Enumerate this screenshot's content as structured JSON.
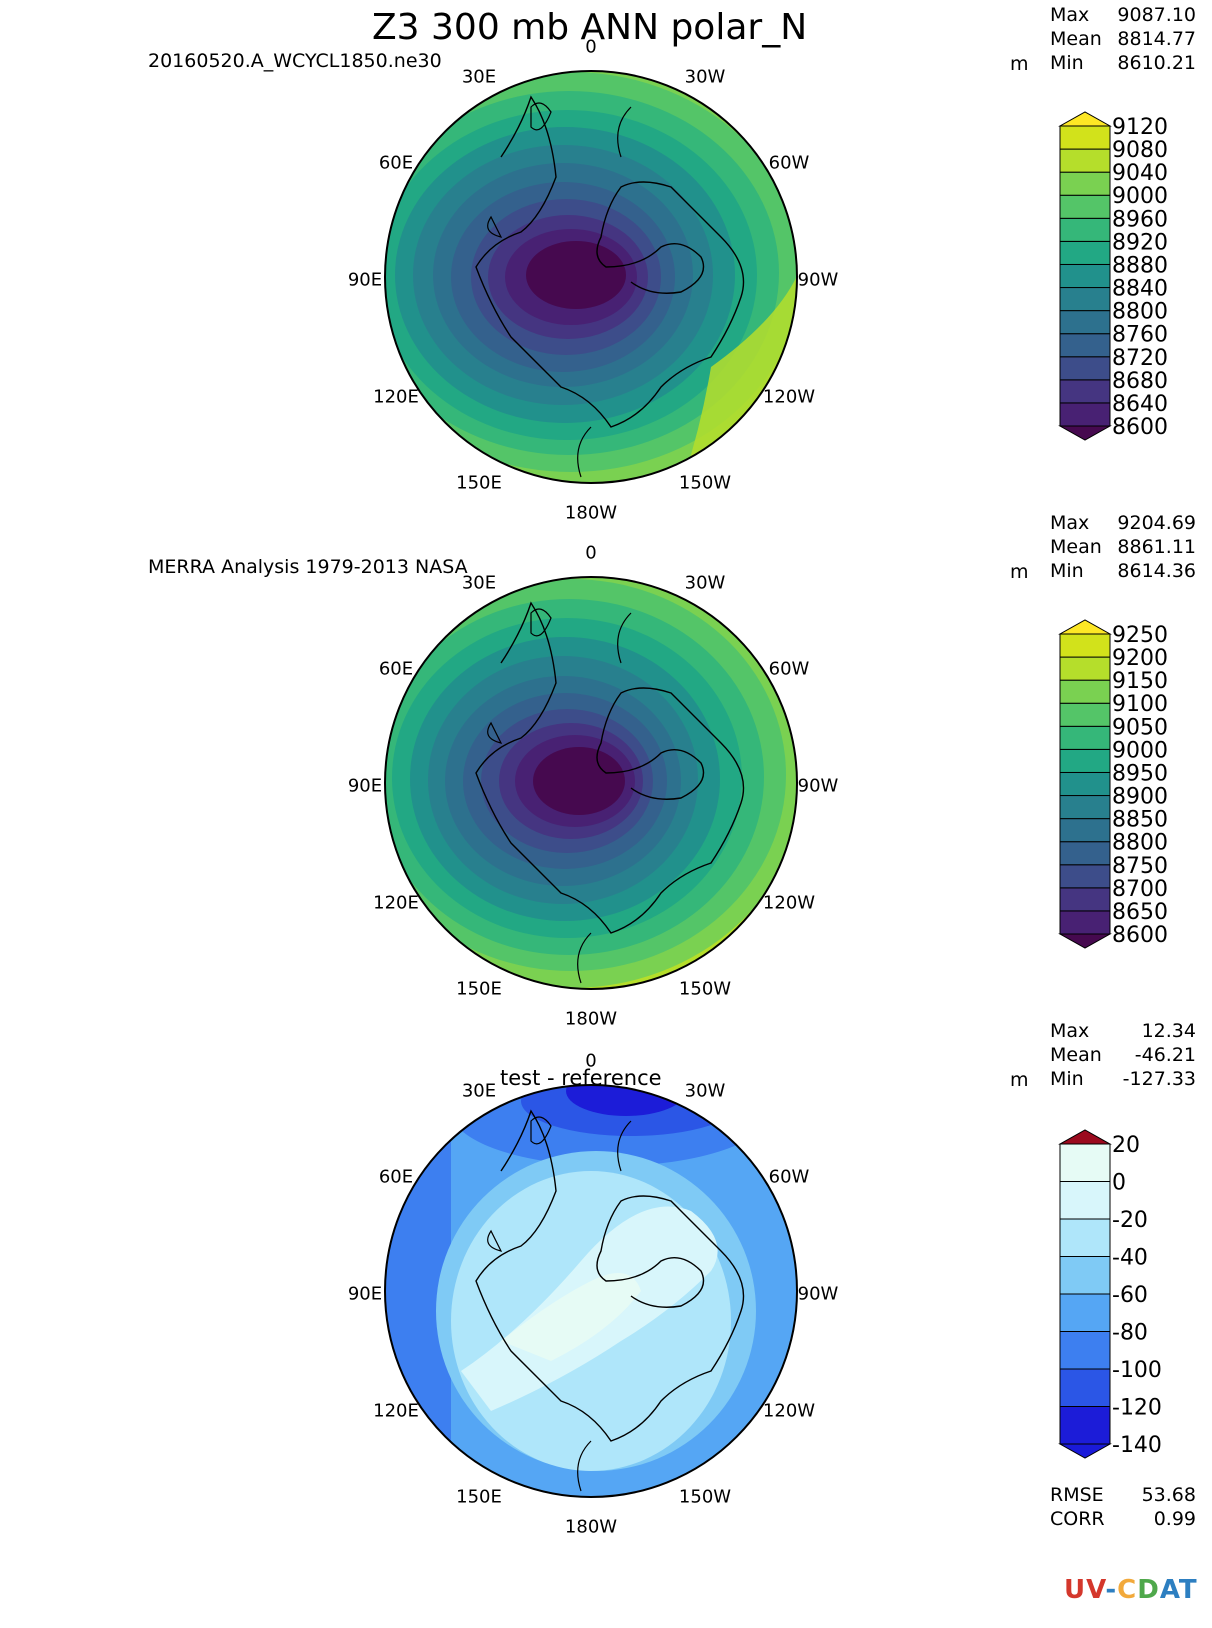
{
  "title": "Z3 300 mb ANN polar_N",
  "panels": [
    {
      "id": "test",
      "subtitle": "20160520.A_WCYCL1850.ne30",
      "unit": "m",
      "stats": {
        "max_label": "Max",
        "max": "9087.10",
        "mean_label": "Mean",
        "mean": "8814.77",
        "min_label": "Min",
        "min": "8610.21"
      },
      "colorbar": {
        "levels": [
          "8600",
          "8640",
          "8680",
          "8720",
          "8760",
          "8800",
          "8840",
          "8880",
          "8920",
          "8960",
          "9000",
          "9040",
          "9080",
          "9120"
        ],
        "colors": [
          "#46094f",
          "#482173",
          "#453581",
          "#3d4d8a",
          "#34618d",
          "#2d718e",
          "#28808e",
          "#21918c",
          "#22a884",
          "#35b779",
          "#54c568",
          "#7ad151",
          "#b5de2b",
          "#d2e21b",
          "#fde725"
        ]
      },
      "lon_labels": [
        "0",
        "30W",
        "60W",
        "90W",
        "120W",
        "150W",
        "180W",
        "150E",
        "120E",
        "90E",
        "60E",
        "30E"
      ]
    },
    {
      "id": "reference",
      "subtitle": "MERRA Analysis 1979-2013 NASA",
      "unit": "m",
      "stats": {
        "max_label": "Max",
        "max": "9204.69",
        "mean_label": "Mean",
        "mean": "8861.11",
        "min_label": "Min",
        "min": "8614.36"
      },
      "colorbar": {
        "levels": [
          "8600",
          "8650",
          "8700",
          "8750",
          "8800",
          "8850",
          "8900",
          "8950",
          "9000",
          "9050",
          "9100",
          "9150",
          "9200",
          "9250"
        ],
        "colors": [
          "#46094f",
          "#482173",
          "#453581",
          "#3d4d8a",
          "#34618d",
          "#2d718e",
          "#28808e",
          "#21918c",
          "#22a884",
          "#35b779",
          "#54c568",
          "#7ad151",
          "#b5de2b",
          "#d2e21b",
          "#fde725"
        ]
      },
      "lon_labels": [
        "0",
        "30W",
        "60W",
        "90W",
        "120W",
        "150W",
        "180W",
        "150E",
        "120E",
        "90E",
        "60E",
        "30E"
      ]
    },
    {
      "id": "difference",
      "subtitle": "test - reference",
      "unit": "m",
      "stats": {
        "max_label": "Max",
        "max": "12.34",
        "mean_label": "Mean",
        "mean": "-46.21",
        "min_label": "Min",
        "min": "-127.33"
      },
      "colorbar": {
        "levels": [
          "-140",
          "-120",
          "-100",
          "-80",
          "-60",
          "-40",
          "-20",
          "0",
          "20"
        ],
        "colors": [
          "#1a1ad9",
          "#1c1cd8",
          "#2b56e6",
          "#3d7ff0",
          "#55a6f4",
          "#7fcaf5",
          "#afe6fa",
          "#d8f6fb",
          "#e6fbf5",
          "#9b0a1e"
        ]
      },
      "lon_labels": [
        "0",
        "30W",
        "60W",
        "90W",
        "120W",
        "150W",
        "180W",
        "150E",
        "120E",
        "90E",
        "60E",
        "30E"
      ],
      "metrics": {
        "rmse_label": "RMSE",
        "rmse": "53.68",
        "corr_label": "CORR",
        "corr": "0.99"
      }
    }
  ],
  "logo": {
    "text": "UV-CDAT"
  },
  "chart_data": [
    {
      "type": "heatmap",
      "title": "Z3 300 mb ANN polar_N",
      "subtitle": "20160520.A_WCYCL1850.ne30",
      "projection": "north polar stereographic",
      "units": "m",
      "max": 9087.1,
      "mean": 8814.77,
      "min": 8610.21,
      "levels": [
        8600,
        8640,
        8680,
        8720,
        8760,
        8800,
        8840,
        8880,
        8920,
        8960,
        9000,
        9040,
        9080,
        9120
      ]
    },
    {
      "type": "heatmap",
      "subtitle": "MERRA Analysis 1979-2013 NASA",
      "projection": "north polar stereographic",
      "units": "m",
      "max": 9204.69,
      "mean": 8861.11,
      "min": 8614.36,
      "levels": [
        8600,
        8650,
        8700,
        8750,
        8800,
        8850,
        8900,
        8950,
        9000,
        9050,
        9100,
        9150,
        9200,
        9250
      ]
    },
    {
      "type": "heatmap",
      "subtitle": "test - reference",
      "projection": "north polar stereographic",
      "units": "m",
      "max": 12.34,
      "mean": -46.21,
      "min": -127.33,
      "rmse": 53.68,
      "corr": 0.99,
      "levels": [
        -140,
        -120,
        -100,
        -80,
        -60,
        -40,
        -20,
        0,
        20
      ]
    }
  ]
}
